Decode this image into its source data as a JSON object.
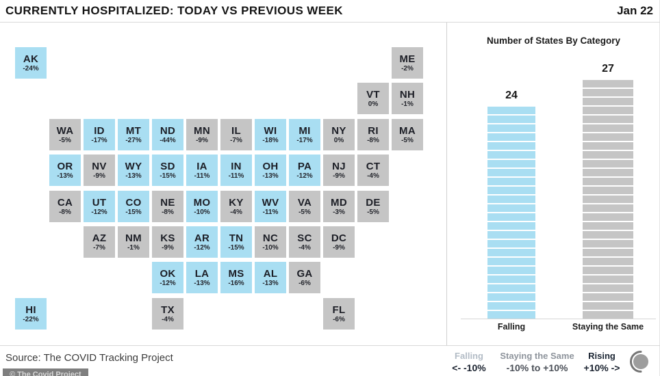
{
  "header": {
    "title": "CURRENTLY HOSPITALIZED: TODAY VS PREVIOUS WEEK",
    "date": "Jan 22"
  },
  "colors": {
    "falling": "#a9def2",
    "staying_same": "#c5c5c5",
    "legend_falling_label": "#b3bcc6",
    "legend_same_label": "#8e949c",
    "legend_rising_label": "#1b2533",
    "legend_value_dark": "#1b2330",
    "legend_value_gray": "#4a4f57"
  },
  "map": {
    "states": [
      {
        "abbr": "AK",
        "value": "-24%",
        "category": "falling",
        "col": 0,
        "row": 0
      },
      {
        "abbr": "ME",
        "value": "-2%",
        "category": "same",
        "col": 11,
        "row": 0
      },
      {
        "abbr": "VT",
        "value": "0%",
        "category": "same",
        "col": 10,
        "row": 1
      },
      {
        "abbr": "NH",
        "value": "-1%",
        "category": "same",
        "col": 11,
        "row": 1
      },
      {
        "abbr": "WA",
        "value": "-5%",
        "category": "same",
        "col": 1,
        "row": 2
      },
      {
        "abbr": "ID",
        "value": "-17%",
        "category": "falling",
        "col": 2,
        "row": 2
      },
      {
        "abbr": "MT",
        "value": "-27%",
        "category": "falling",
        "col": 3,
        "row": 2
      },
      {
        "abbr": "ND",
        "value": "-44%",
        "category": "falling",
        "col": 4,
        "row": 2
      },
      {
        "abbr": "MN",
        "value": "-9%",
        "category": "same",
        "col": 5,
        "row": 2
      },
      {
        "abbr": "IL",
        "value": "-7%",
        "category": "same",
        "col": 6,
        "row": 2
      },
      {
        "abbr": "WI",
        "value": "-18%",
        "category": "falling",
        "col": 7,
        "row": 2
      },
      {
        "abbr": "MI",
        "value": "-17%",
        "category": "falling",
        "col": 8,
        "row": 2
      },
      {
        "abbr": "NY",
        "value": "0%",
        "category": "same",
        "col": 9,
        "row": 2
      },
      {
        "abbr": "RI",
        "value": "-8%",
        "category": "same",
        "col": 10,
        "row": 2
      },
      {
        "abbr": "MA",
        "value": "-5%",
        "category": "same",
        "col": 11,
        "row": 2
      },
      {
        "abbr": "OR",
        "value": "-13%",
        "category": "falling",
        "col": 1,
        "row": 3
      },
      {
        "abbr": "NV",
        "value": "-9%",
        "category": "same",
        "col": 2,
        "row": 3
      },
      {
        "abbr": "WY",
        "value": "-13%",
        "category": "falling",
        "col": 3,
        "row": 3
      },
      {
        "abbr": "SD",
        "value": "-15%",
        "category": "falling",
        "col": 4,
        "row": 3
      },
      {
        "abbr": "IA",
        "value": "-11%",
        "category": "falling",
        "col": 5,
        "row": 3
      },
      {
        "abbr": "IN",
        "value": "-11%",
        "category": "falling",
        "col": 6,
        "row": 3
      },
      {
        "abbr": "OH",
        "value": "-13%",
        "category": "falling",
        "col": 7,
        "row": 3
      },
      {
        "abbr": "PA",
        "value": "-12%",
        "category": "falling",
        "col": 8,
        "row": 3
      },
      {
        "abbr": "NJ",
        "value": "-9%",
        "category": "same",
        "col": 9,
        "row": 3
      },
      {
        "abbr": "CT",
        "value": "-4%",
        "category": "same",
        "col": 10,
        "row": 3
      },
      {
        "abbr": "CA",
        "value": "-8%",
        "category": "same",
        "col": 1,
        "row": 4
      },
      {
        "abbr": "UT",
        "value": "-12%",
        "category": "falling",
        "col": 2,
        "row": 4
      },
      {
        "abbr": "CO",
        "value": "-15%",
        "category": "falling",
        "col": 3,
        "row": 4
      },
      {
        "abbr": "NE",
        "value": "-8%",
        "category": "same",
        "col": 4,
        "row": 4
      },
      {
        "abbr": "MO",
        "value": "-10%",
        "category": "falling",
        "col": 5,
        "row": 4
      },
      {
        "abbr": "KY",
        "value": "-4%",
        "category": "same",
        "col": 6,
        "row": 4
      },
      {
        "abbr": "WV",
        "value": "-11%",
        "category": "falling",
        "col": 7,
        "row": 4
      },
      {
        "abbr": "VA",
        "value": "-5%",
        "category": "same",
        "col": 8,
        "row": 4
      },
      {
        "abbr": "MD",
        "value": "-3%",
        "category": "same",
        "col": 9,
        "row": 4
      },
      {
        "abbr": "DE",
        "value": "-5%",
        "category": "same",
        "col": 10,
        "row": 4
      },
      {
        "abbr": "AZ",
        "value": "-7%",
        "category": "same",
        "col": 2,
        "row": 5
      },
      {
        "abbr": "NM",
        "value": "-1%",
        "category": "same",
        "col": 3,
        "row": 5
      },
      {
        "abbr": "KS",
        "value": "-9%",
        "category": "same",
        "col": 4,
        "row": 5
      },
      {
        "abbr": "AR",
        "value": "-12%",
        "category": "falling",
        "col": 5,
        "row": 5
      },
      {
        "abbr": "TN",
        "value": "-15%",
        "category": "falling",
        "col": 6,
        "row": 5
      },
      {
        "abbr": "NC",
        "value": "-10%",
        "category": "same",
        "col": 7,
        "row": 5
      },
      {
        "abbr": "SC",
        "value": "-4%",
        "category": "same",
        "col": 8,
        "row": 5
      },
      {
        "abbr": "DC",
        "value": "-9%",
        "category": "same",
        "col": 9,
        "row": 5
      },
      {
        "abbr": "OK",
        "value": "-12%",
        "category": "falling",
        "col": 4,
        "row": 6
      },
      {
        "abbr": "LA",
        "value": "-13%",
        "category": "falling",
        "col": 5,
        "row": 6
      },
      {
        "abbr": "MS",
        "value": "-16%",
        "category": "falling",
        "col": 6,
        "row": 6
      },
      {
        "abbr": "AL",
        "value": "-13%",
        "category": "falling",
        "col": 7,
        "row": 6
      },
      {
        "abbr": "GA",
        "value": "-6%",
        "category": "same",
        "col": 8,
        "row": 6
      },
      {
        "abbr": "HI",
        "value": "-22%",
        "category": "falling",
        "col": 0,
        "row": 7
      },
      {
        "abbr": "TX",
        "value": "-4%",
        "category": "same",
        "col": 4,
        "row": 7
      },
      {
        "abbr": "FL",
        "value": "-6%",
        "category": "same",
        "col": 9,
        "row": 7
      }
    ]
  },
  "chart_data": {
    "type": "bar",
    "title": "Number of States By Category",
    "categories": [
      "Falling",
      "Staying the Same"
    ],
    "values": [
      24,
      27
    ],
    "bar_colors": [
      "#a9def2",
      "#c5c5c5"
    ],
    "ylim": [
      0,
      27
    ],
    "legend_position": "none",
    "grid": false
  },
  "footer": {
    "source": "Source: The COVID Tracking Project",
    "watermark": "© The Covid Project",
    "legend": [
      {
        "label": "Falling",
        "range": "<-  -10%"
      },
      {
        "label": "Staying the Same",
        "range": "-10% to +10%"
      },
      {
        "label": "Rising",
        "range": "+10%  ->"
      }
    ]
  }
}
